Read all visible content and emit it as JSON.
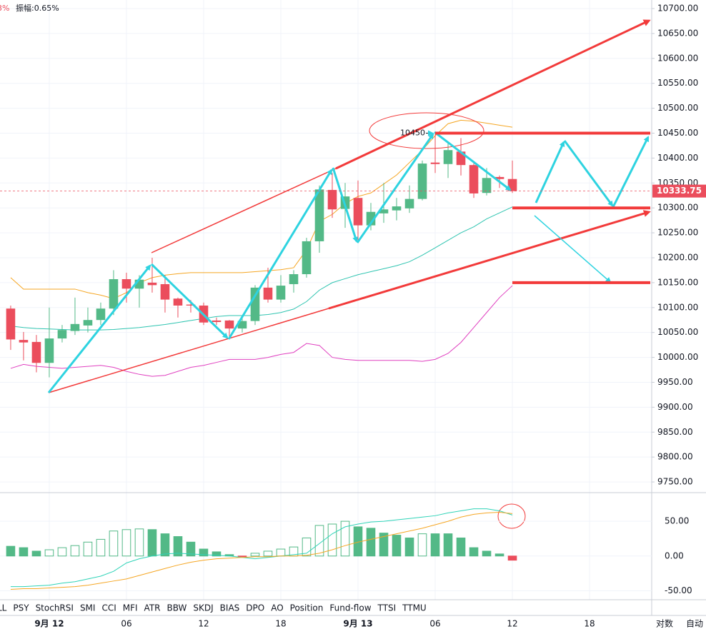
{
  "header": {
    "change_partial": "3%",
    "amplitude": "振幅:0.65%"
  },
  "chart_data": [
    {
      "type": "candlestick",
      "x": [
        0,
        1,
        2,
        3,
        4,
        5,
        6,
        7,
        8,
        9,
        10,
        11,
        12,
        13,
        14,
        15,
        16,
        17,
        18,
        19,
        20,
        21,
        22,
        23,
        24,
        25,
        26,
        27,
        28,
        29,
        30,
        31,
        32,
        33,
        34,
        35,
        36,
        37,
        38,
        39
      ],
      "open": [
        10098,
        10035,
        10031,
        9989,
        10038,
        10053,
        10064,
        10075,
        10098,
        10157,
        10138,
        10150,
        10147,
        10118,
        10106,
        10104,
        10074,
        10074,
        10058,
        10073,
        10140,
        10116,
        10147,
        10167,
        10233,
        10336,
        10298,
        10320,
        10265,
        10289,
        10295,
        10299,
        10318,
        10391,
        10388,
        10413,
        10386,
        10330,
        10362,
        10358
      ],
      "high": [
        10104,
        10051,
        10045,
        10100,
        10065,
        10120,
        10100,
        10110,
        10175,
        10170,
        10165,
        10200,
        10165,
        10120,
        10115,
        10110,
        10080,
        10075,
        10080,
        10145,
        10180,
        10165,
        10175,
        10240,
        10345,
        10370,
        10350,
        10355,
        10310,
        10350,
        10320,
        10345,
        10395,
        10450,
        10430,
        10440,
        10390,
        10380,
        10365,
        10395
      ],
      "low": [
        10015,
        9994,
        9970,
        9960,
        10030,
        10045,
        10050,
        10065,
        10085,
        10110,
        10100,
        10130,
        10090,
        10080,
        10090,
        10065,
        10065,
        10040,
        10050,
        10065,
        10110,
        10110,
        10130,
        10160,
        10210,
        10280,
        10260,
        10230,
        10255,
        10270,
        10275,
        10290,
        10315,
        10370,
        10360,
        10365,
        10320,
        10325,
        10340,
        10330
      ],
      "close": [
        10036,
        10030,
        9989,
        10038,
        10055,
        10067,
        10075,
        10098,
        10157,
        10138,
        10156,
        10145,
        10116,
        10104,
        10104,
        10070,
        10071,
        10058,
        10073,
        10140,
        10116,
        10144,
        10167,
        10233,
        10337,
        10297,
        10323,
        10265,
        10292,
        10297,
        10303,
        10318,
        10389,
        10388,
        10416,
        10386,
        10329,
        10360,
        10358,
        10333.75
      ],
      "up_color": "#53b987",
      "down_color": "#eb4d5c",
      "series": [
        {
          "color": "#f5a623",
          "values": [
            10160,
            10137,
            10137,
            10137,
            10137,
            10137,
            10130,
            10125,
            10118,
            10130,
            10150,
            10160,
            10165,
            10168,
            10170,
            10170,
            10170,
            10170,
            10170,
            10172,
            10174,
            10176,
            10180,
            10216,
            10273,
            10287,
            10309,
            10323,
            10330,
            10348,
            10366,
            10391,
            10416,
            10445,
            10469,
            10476,
            10474,
            10470,
            10466,
            10462
          ]
        },
        {
          "color": "#2ec4b0",
          "values": [
            10063,
            10060,
            10058,
            10057,
            10056,
            10055,
            10055,
            10055,
            10056,
            10058,
            10060,
            10063,
            10066,
            10070,
            10074,
            10078,
            10082,
            10084,
            10084,
            10084,
            10086,
            10090,
            10097,
            10112,
            10135,
            10150,
            10158,
            10166,
            10172,
            10178,
            10184,
            10192,
            10205,
            10220,
            10235,
            10250,
            10262,
            10278,
            10290,
            10302
          ]
        },
        {
          "color": "#e040c0",
          "values": [
            9978,
            9986,
            9982,
            9980,
            9978,
            9980,
            9982,
            9984,
            9980,
            9972,
            9966,
            9962,
            9964,
            9972,
            9980,
            9984,
            9990,
            9996,
            9996,
            9996,
            10000,
            10006,
            10010,
            10028,
            10024,
            10000,
            9996,
            9994,
            9994,
            9994,
            9994,
            9994,
            9992,
            9996,
            10008,
            10030,
            10060,
            10090,
            10120,
            10144
          ]
        }
      ],
      "xlim": [
        -0.83,
        49.83
      ],
      "xticks": [
        {
          "value": 3,
          "label": "9月 12"
        },
        {
          "value": 9,
          "label": "06"
        },
        {
          "value": 15,
          "label": "12"
        },
        {
          "value": 21,
          "label": "18"
        },
        {
          "value": 27,
          "label": "9月 13"
        },
        {
          "value": 33,
          "label": "06"
        },
        {
          "value": 39,
          "label": "12"
        },
        {
          "value": 45,
          "label": "18"
        }
      ],
      "ylim": [
        9728.6,
        10717.2
      ],
      "yticks": [
        {
          "value": 10700,
          "label": "10700.00"
        },
        {
          "value": 10650,
          "label": "10650.00"
        },
        {
          "value": 10600,
          "label": "10600.00"
        },
        {
          "value": 10550,
          "label": "10550.00"
        },
        {
          "value": 10500,
          "label": "10500.00"
        },
        {
          "value": 10450,
          "label": "10450.00"
        },
        {
          "value": 10400,
          "label": "10400.00"
        },
        {
          "value": 10350,
          "label": "10350.00"
        },
        {
          "value": 10300,
          "label": "10300.00"
        },
        {
          "value": 10250,
          "label": "10250.00"
        },
        {
          "value": 10200,
          "label": "10200.00"
        },
        {
          "value": 10150,
          "label": "10150.00"
        },
        {
          "value": 10100,
          "label": "10100.00"
        },
        {
          "value": 10050,
          "label": "10050.00"
        },
        {
          "value": 10000,
          "label": "10000.00"
        },
        {
          "value": 9950,
          "label": "9950.00"
        },
        {
          "value": 9900,
          "label": "9900.00"
        },
        {
          "value": 9850,
          "label": "9850.00"
        },
        {
          "value": 9800,
          "label": "9800.00"
        },
        {
          "value": 9750,
          "label": "9750.00"
        }
      ],
      "grid": true,
      "last_price": 10333.75,
      "annotation_price": 10450,
      "levels": [
        10450,
        10300,
        10150
      ],
      "level_color": "#f23a3a"
    },
    {
      "type": "macd",
      "values": [
        14,
        12,
        7,
        9,
        12,
        15,
        20,
        24,
        36,
        38,
        39,
        38,
        32,
        28,
        20,
        10,
        6,
        2,
        -1,
        4,
        7,
        10,
        13,
        26,
        44,
        46,
        50,
        42,
        40,
        33,
        30,
        26,
        32,
        32,
        32,
        26,
        12,
        7,
        3,
        -6
      ],
      "color": "#53b987",
      "negative_color": "#eb4d5c",
      "series": [
        {
          "color": "#2ed3b7",
          "values": [
            -44,
            -44,
            -43,
            -42,
            -39,
            -37,
            -33,
            -29,
            -22,
            -10,
            -4,
            0,
            3,
            4,
            3,
            2,
            1,
            0,
            -2,
            -4,
            -2,
            0,
            2,
            4,
            18,
            32,
            42,
            46,
            49,
            50,
            52,
            54,
            56,
            58,
            62,
            65,
            68,
            68,
            65,
            59
          ]
        },
        {
          "color": "#f5a623",
          "values": [
            -48,
            -47,
            -47,
            -46,
            -45,
            -44,
            -42,
            -39,
            -36,
            -33,
            -28,
            -23,
            -18,
            -13,
            -9,
            -6,
            -4,
            -3,
            -2,
            -1,
            -1,
            0,
            0,
            1,
            4,
            9,
            15,
            20,
            24,
            28,
            32,
            36,
            40,
            45,
            50,
            56,
            60,
            62,
            63,
            61
          ]
        }
      ],
      "ylim": [
        -62.9,
        91.2
      ],
      "yticks": [
        {
          "value": 50,
          "label": "50.00"
        },
        {
          "value": 0,
          "label": "0.00"
        },
        {
          "value": -50,
          "label": "-50.00"
        }
      ]
    }
  ],
  "toolbar": {
    "indicators": [
      "LL",
      "PSY",
      "StochRSI",
      "SMI",
      "CCI",
      "MFI",
      "ATR",
      "BBW",
      "SKDJ",
      "BIAS",
      "DPO",
      "AO",
      "Position",
      "Fund-flow",
      "TTSI",
      "TTMU"
    ],
    "scale_buttons": [
      "对数",
      "自动"
    ]
  }
}
